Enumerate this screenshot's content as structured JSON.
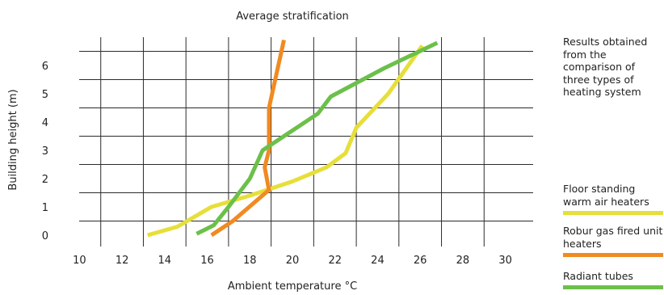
{
  "chart_data": {
    "type": "line",
    "title": "Average stratification",
    "xlabel": "Ambient temperature °C",
    "ylabel": "Building height (m)",
    "xlim": [
      9,
      31
    ],
    "ylim": [
      -0.4,
      7
    ],
    "xticks": [
      10,
      12,
      14,
      16,
      18,
      20,
      22,
      24,
      26,
      28,
      30
    ],
    "yticks": [
      0,
      1,
      2,
      3,
      4,
      5,
      6
    ],
    "grid": true,
    "note": "Results obtained from the comparison of three types of heating system",
    "series": [
      {
        "name": "Floor standing warm air heaters",
        "color": "#e6df3a",
        "points": [
          [
            13.2,
            0.0
          ],
          [
            14.6,
            0.3
          ],
          [
            16.2,
            1.0
          ],
          [
            18.0,
            1.4
          ],
          [
            20.0,
            1.9
          ],
          [
            21.6,
            2.4
          ],
          [
            22.5,
            2.9
          ],
          [
            23.0,
            3.8
          ],
          [
            24.5,
            5.0
          ],
          [
            26.1,
            6.7
          ]
        ]
      },
      {
        "name": "Robur gas fired unit heaters",
        "color": "#f18a21",
        "points": [
          [
            16.2,
            0.0
          ],
          [
            17.2,
            0.5
          ],
          [
            18.9,
            1.6
          ],
          [
            18.7,
            2.4
          ],
          [
            18.9,
            3.0
          ],
          [
            18.9,
            4.5
          ],
          [
            19.6,
            6.9
          ]
        ]
      },
      {
        "name": "Radiant tubes",
        "color": "#6cc04a",
        "points": [
          [
            15.5,
            0.05
          ],
          [
            16.3,
            0.35
          ],
          [
            17.0,
            1.0
          ],
          [
            18.0,
            2.0
          ],
          [
            18.6,
            3.0
          ],
          [
            21.2,
            4.3
          ],
          [
            21.8,
            4.9
          ],
          [
            24.3,
            5.9
          ],
          [
            26.8,
            6.8
          ]
        ]
      }
    ]
  }
}
